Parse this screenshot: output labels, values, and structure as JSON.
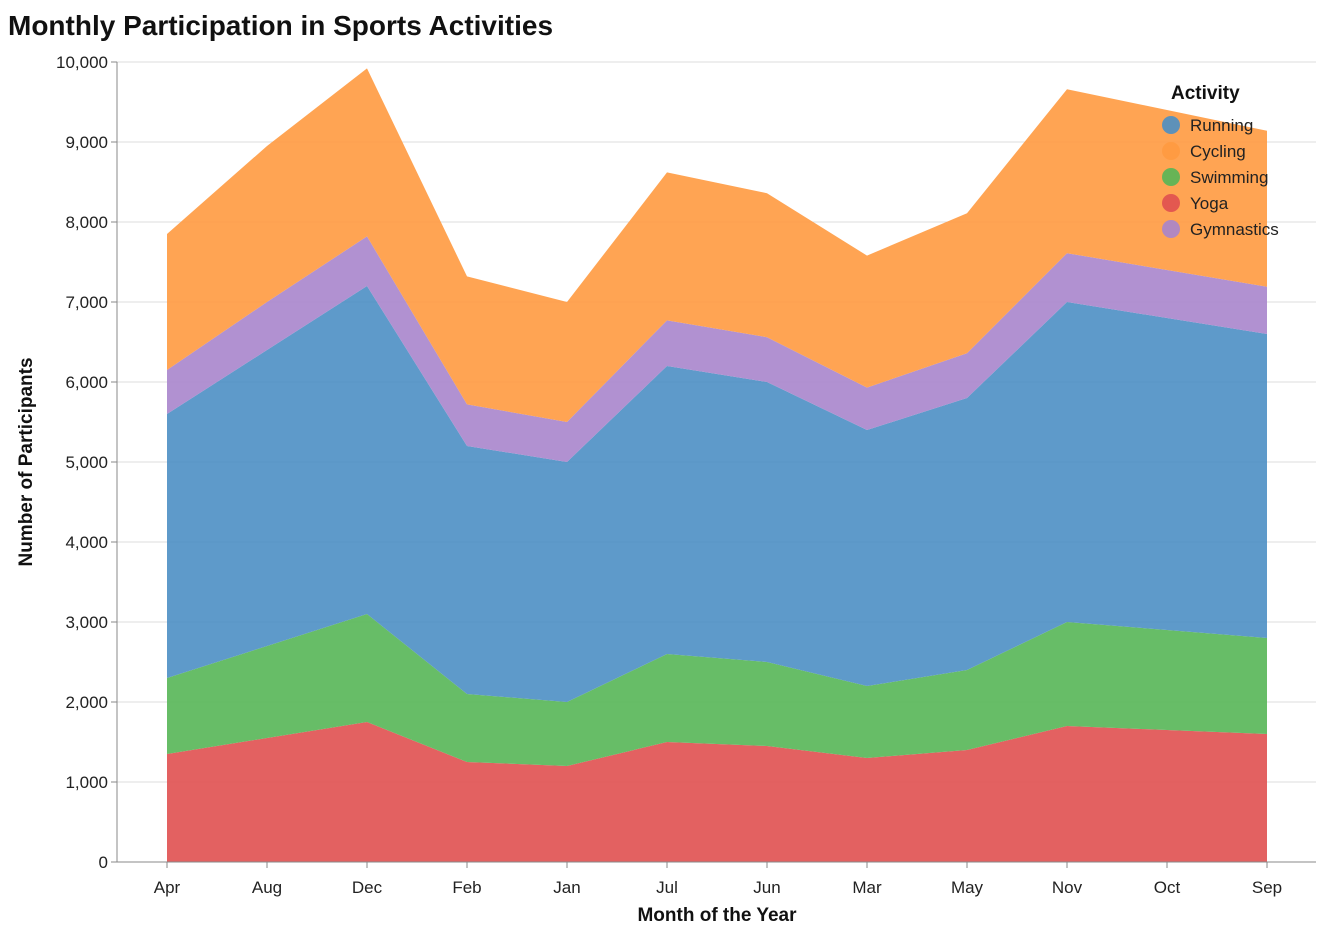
{
  "chart_data": {
    "type": "area",
    "stacked": true,
    "title": "Monthly Participation in Sports Activities",
    "xlabel": "Month of the Year",
    "ylabel": "Number of Participants",
    "ylim": [
      0,
      10000
    ],
    "y_ticks": [
      0,
      1000,
      2000,
      3000,
      4000,
      5000,
      6000,
      7000,
      8000,
      9000,
      10000
    ],
    "y_tick_labels": [
      "0",
      "1,000",
      "2,000",
      "3,000",
      "4,000",
      "5,000",
      "6,000",
      "7,000",
      "8,000",
      "9,000",
      "10,000"
    ],
    "grid": "horizontal",
    "categories": [
      "Apr",
      "Aug",
      "Dec",
      "Feb",
      "Jan",
      "Jul",
      "Jun",
      "Mar",
      "May",
      "Nov",
      "Oct",
      "Sep"
    ],
    "legend": {
      "title": "Activity",
      "position": "top-right",
      "entries": [
        "Running",
        "Cycling",
        "Swimming",
        "Yoga",
        "Gymnastics"
      ]
    },
    "stack_order": [
      "Yoga",
      "Swimming",
      "Running",
      "Gymnastics",
      "Cycling"
    ],
    "series": [
      {
        "name": "Running",
        "color": "#4c8fc4",
        "values": [
          3300,
          3700,
          4100,
          3100,
          3000,
          3600,
          3500,
          3200,
          3400,
          4000,
          3900,
          3800
        ]
      },
      {
        "name": "Cycling",
        "color": "#ff9a40",
        "values": [
          1700,
          1950,
          2100,
          1600,
          1500,
          1850,
          1800,
          1650,
          1750,
          2050,
          2000,
          1950
        ]
      },
      {
        "name": "Swimming",
        "color": "#57b656",
        "values": [
          950,
          1150,
          1350,
          850,
          800,
          1100,
          1050,
          900,
          1000,
          1300,
          1250,
          1200
        ]
      },
      {
        "name": "Yoga",
        "color": "#e05050",
        "values": [
          1350,
          1550,
          1750,
          1250,
          1200,
          1500,
          1450,
          1300,
          1400,
          1700,
          1650,
          1600
        ]
      },
      {
        "name": "Gymnastics",
        "color": "#a985cc",
        "values": [
          550,
          600,
          620,
          520,
          500,
          570,
          560,
          530,
          560,
          610,
          600,
          590
        ]
      }
    ]
  }
}
